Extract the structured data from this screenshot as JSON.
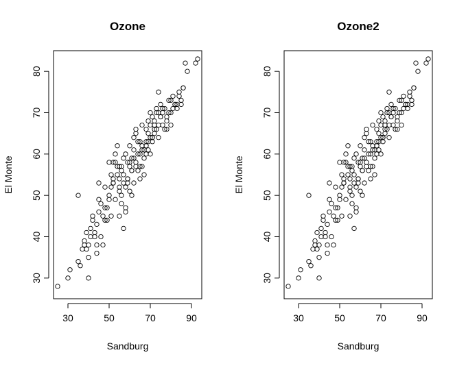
{
  "chart_data": [
    {
      "type": "scatter",
      "title": "Ozone",
      "xlabel": "Sandburg",
      "ylabel": "El Monte",
      "xlim": [
        23,
        95
      ],
      "ylim": [
        25,
        85
      ],
      "xticks": [
        30,
        50,
        70,
        90
      ],
      "yticks": [
        30,
        40,
        50,
        60,
        70,
        80
      ],
      "grid": false,
      "series": [
        {
          "x": [
            25,
            30,
            31,
            35,
            35,
            36,
            37,
            38,
            39,
            39,
            40,
            40,
            41,
            41,
            42,
            42,
            43,
            44,
            44,
            45,
            45,
            46,
            46,
            47,
            48,
            48,
            49,
            50,
            50,
            51,
            51,
            52,
            52,
            53,
            53,
            54,
            54,
            55,
            55,
            55,
            56,
            56,
            57,
            57,
            58,
            58,
            59,
            59,
            60,
            60,
            60,
            61,
            61,
            62,
            62,
            63,
            63,
            64,
            64,
            65,
            65,
            66,
            66,
            67,
            67,
            68,
            68,
            69,
            69,
            70,
            70,
            71,
            71,
            72,
            72,
            73,
            73,
            74,
            74,
            75,
            75,
            76,
            77,
            78,
            79,
            80,
            80,
            81,
            82,
            83,
            84,
            85,
            86,
            87,
            88,
            92,
            93,
            48,
            52,
            56,
            58,
            62,
            66,
            70,
            74,
            78,
            45,
            50,
            55,
            60,
            65,
            70,
            54,
            57,
            61,
            63,
            68,
            72,
            76,
            80,
            84,
            38,
            43,
            47,
            51,
            55,
            59,
            64,
            67,
            71,
            75,
            79,
            83,
            53,
            57,
            62,
            66,
            69,
            73,
            77,
            81,
            85,
            56,
            59,
            63,
            68,
            71,
            74,
            78,
            82,
            86,
            40,
            44,
            49,
            52,
            58,
            61,
            65,
            69,
            72,
            76
          ],
          "y": [
            28,
            30,
            32,
            34,
            50,
            33,
            37,
            39,
            37,
            41,
            35,
            38,
            40,
            42,
            44,
            45,
            40,
            38,
            36,
            46,
            53,
            48,
            40,
            38,
            44,
            52,
            47,
            50,
            58,
            55,
            45,
            53,
            58,
            49,
            60,
            55,
            62,
            52,
            57,
            45,
            56,
            48,
            42,
            59,
            47,
            60,
            54,
            58,
            51,
            57,
            62,
            56,
            59,
            53,
            64,
            58,
            66,
            56,
            63,
            54,
            60,
            62,
            67,
            55,
            61,
            66,
            63,
            68,
            61,
            70,
            67,
            63,
            69,
            68,
            65,
            71,
            66,
            75,
            64,
            72,
            69,
            67,
            71,
            68,
            73,
            70,
            67,
            74,
            72,
            71,
            75,
            72,
            76,
            82,
            80,
            82,
            83,
            47,
            53,
            57,
            52,
            61,
            57,
            64,
            70,
            66,
            49,
            49,
            54,
            58,
            63,
            60,
            57,
            53,
            56,
            65,
            62,
            67,
            71,
            73,
            74,
            38,
            41,
            45,
            52,
            51,
            53,
            60,
            59,
            64,
            69,
            70,
            72,
            58,
            55,
            59,
            61,
            63,
            70,
            66,
            71,
            73,
            50,
            54,
            57,
            60,
            64,
            67,
            69,
            72,
            76,
            30,
            43,
            44,
            54,
            46,
            50,
            57,
            65,
            66,
            70
          ]
        }
      ]
    },
    {
      "type": "scatter",
      "title": "Ozone2",
      "xlabel": "Sandburg",
      "ylabel": "El Monte",
      "xlim": [
        23,
        95
      ],
      "ylim": [
        25,
        85
      ],
      "xticks": [
        30,
        50,
        70,
        90
      ],
      "yticks": [
        30,
        40,
        50,
        60,
        70,
        80
      ],
      "grid": false,
      "series": [
        {
          "x": [
            25,
            30,
            31,
            35,
            35,
            36,
            37,
            38,
            39,
            39,
            40,
            40,
            41,
            41,
            42,
            42,
            43,
            44,
            44,
            45,
            45,
            46,
            46,
            47,
            48,
            48,
            49,
            50,
            50,
            51,
            51,
            52,
            52,
            53,
            53,
            54,
            54,
            55,
            55,
            55,
            56,
            56,
            57,
            57,
            58,
            58,
            59,
            59,
            60,
            60,
            60,
            61,
            61,
            62,
            62,
            63,
            63,
            64,
            64,
            65,
            65,
            66,
            66,
            67,
            67,
            68,
            68,
            69,
            69,
            70,
            70,
            71,
            71,
            72,
            72,
            73,
            73,
            74,
            74,
            75,
            75,
            76,
            77,
            78,
            79,
            80,
            80,
            81,
            82,
            83,
            84,
            85,
            86,
            87,
            88,
            92,
            93,
            48,
            52,
            56,
            58,
            62,
            66,
            70,
            74,
            78,
            45,
            50,
            55,
            60,
            65,
            70,
            54,
            57,
            61,
            63,
            68,
            72,
            76,
            80,
            84,
            38,
            43,
            47,
            51,
            55,
            59,
            64,
            67,
            71,
            75,
            79,
            83,
            53,
            57,
            62,
            66,
            69,
            73,
            77,
            81,
            85,
            56,
            59,
            63,
            68,
            71,
            74,
            78,
            82,
            86,
            40,
            44,
            49,
            52,
            58,
            61,
            65,
            69,
            72,
            76
          ],
          "y": [
            28,
            30,
            32,
            34,
            50,
            33,
            37,
            39,
            37,
            41,
            35,
            38,
            40,
            42,
            44,
            45,
            40,
            38,
            36,
            46,
            53,
            48,
            40,
            38,
            44,
            52,
            47,
            50,
            58,
            55,
            45,
            53,
            58,
            49,
            60,
            55,
            62,
            52,
            57,
            45,
            56,
            48,
            42,
            59,
            47,
            60,
            54,
            58,
            51,
            57,
            62,
            56,
            59,
            53,
            64,
            58,
            66,
            56,
            63,
            54,
            60,
            62,
            67,
            55,
            61,
            66,
            63,
            68,
            61,
            70,
            67,
            63,
            69,
            68,
            65,
            71,
            66,
            75,
            64,
            72,
            69,
            67,
            71,
            68,
            73,
            70,
            67,
            74,
            72,
            71,
            75,
            72,
            76,
            82,
            80,
            82,
            83,
            47,
            53,
            57,
            52,
            61,
            57,
            64,
            70,
            66,
            49,
            49,
            54,
            58,
            63,
            60,
            57,
            53,
            56,
            65,
            62,
            67,
            71,
            73,
            74,
            38,
            41,
            45,
            52,
            51,
            53,
            60,
            59,
            64,
            69,
            70,
            72,
            58,
            55,
            59,
            61,
            63,
            70,
            66,
            71,
            73,
            50,
            54,
            57,
            60,
            64,
            67,
            69,
            72,
            76,
            30,
            43,
            44,
            54,
            46,
            50,
            57,
            65,
            66,
            70
          ]
        }
      ]
    }
  ]
}
